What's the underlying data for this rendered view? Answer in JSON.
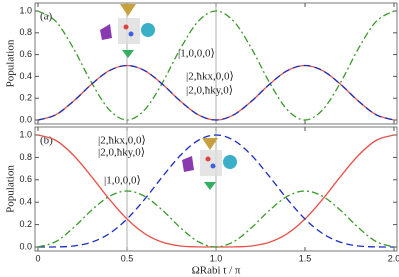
{
  "chart_data": [
    {
      "type": "line",
      "label": "(a)",
      "ylabel": "Population",
      "x": [
        0,
        0.1,
        0.2,
        0.3,
        0.4,
        0.5,
        0.6,
        0.7,
        0.8,
        0.9,
        1,
        1.1,
        1.2,
        1.3,
        1.4,
        1.5,
        1.6,
        1.7,
        1.8,
        1.9,
        2
      ],
      "series": [
        {
          "name": "|1,0,0,0⟩",
          "color": "#3a9a2a",
          "style": "dashdot",
          "values": [
            1,
            0.905,
            0.655,
            0.345,
            0.095,
            0,
            0.095,
            0.345,
            0.655,
            0.905,
            1,
            0.905,
            0.655,
            0.345,
            0.095,
            0,
            0.095,
            0.345,
            0.655,
            0.905,
            1
          ]
        },
        {
          "name": "|2,ħkx,0,0⟩",
          "color": "#e8524a",
          "style": "solid",
          "values": [
            0,
            0.048,
            0.173,
            0.327,
            0.452,
            0.5,
            0.452,
            0.327,
            0.173,
            0.048,
            0,
            0.048,
            0.173,
            0.327,
            0.452,
            0.5,
            0.452,
            0.327,
            0.173,
            0.048,
            0
          ]
        },
        {
          "name": "|2,0,ħky,0⟩",
          "color": "#1a2fc0",
          "style": "dashed",
          "values": [
            0,
            0.048,
            0.173,
            0.327,
            0.452,
            0.5,
            0.452,
            0.327,
            0.173,
            0.048,
            0,
            0.048,
            0.173,
            0.327,
            0.452,
            0.5,
            0.452,
            0.327,
            0.173,
            0.048,
            0
          ]
        }
      ],
      "xlim": [
        0,
        2
      ],
      "ylim": [
        0,
        1
      ],
      "xticks": [
        0,
        0.5,
        {
          "value": 1,
          "label": "1.0"
        },
        1.5,
        {
          "value": 2,
          "label": "2.0"
        }
      ],
      "yticks": [
        {
          "value": 0,
          "label": "0.0"
        },
        0.2,
        0.4,
        0.6,
        0.8,
        {
          "value": 1,
          "label": "1.0"
        }
      ]
    },
    {
      "type": "line",
      "label": "(b)",
      "ylabel": "Population",
      "xlabel": "ΩRabi t / π",
      "x": [
        0,
        0.1,
        0.2,
        0.3,
        0.4,
        0.5,
        0.6,
        0.7,
        0.8,
        0.9,
        1,
        1.1,
        1.2,
        1.3,
        1.4,
        1.5,
        1.6,
        1.7,
        1.8,
        1.9,
        2
      ],
      "series": [
        {
          "color": "#e8524a",
          "style": "solid",
          "values": [
            1,
            0.952,
            0.818,
            0.63,
            0.428,
            0.25,
            0.119,
            0.042,
            0.009,
            0.001,
            0,
            0.001,
            0.009,
            0.042,
            0.119,
            0.25,
            0.428,
            0.63,
            0.818,
            0.952,
            1
          ]
        },
        {
          "name": "|2,0,ħky,0⟩",
          "color": "#1a2fc0",
          "style": "dashed",
          "values": [
            0,
            0.001,
            0.009,
            0.042,
            0.119,
            0.25,
            0.428,
            0.63,
            0.818,
            0.952,
            1,
            0.952,
            0.818,
            0.63,
            0.428,
            0.25,
            0.119,
            0.042,
            0.009,
            0.001,
            0
          ]
        },
        {
          "name": "|1,0,0,0⟩",
          "color": "#3a9a2a",
          "style": "dashdot",
          "values": [
            0,
            0.048,
            0.173,
            0.327,
            0.452,
            0.5,
            0.452,
            0.327,
            0.173,
            0.048,
            0,
            0.048,
            0.173,
            0.327,
            0.452,
            0.5,
            0.452,
            0.327,
            0.173,
            0.048,
            0
          ]
        }
      ],
      "annotations": [
        "|2,ħkx,0,0⟩"
      ],
      "xlim": [
        0,
        2
      ],
      "ylim": [
        0,
        1
      ],
      "xticks": [
        0,
        0.5,
        {
          "value": 1,
          "label": "1.0"
        },
        1.5,
        {
          "value": 2,
          "label": "2.0"
        }
      ],
      "yticks": [
        {
          "value": 0,
          "label": "0.0"
        },
        0.2,
        0.4,
        0.6,
        0.8,
        {
          "value": 1,
          "label": "1.0"
        }
      ]
    }
  ]
}
